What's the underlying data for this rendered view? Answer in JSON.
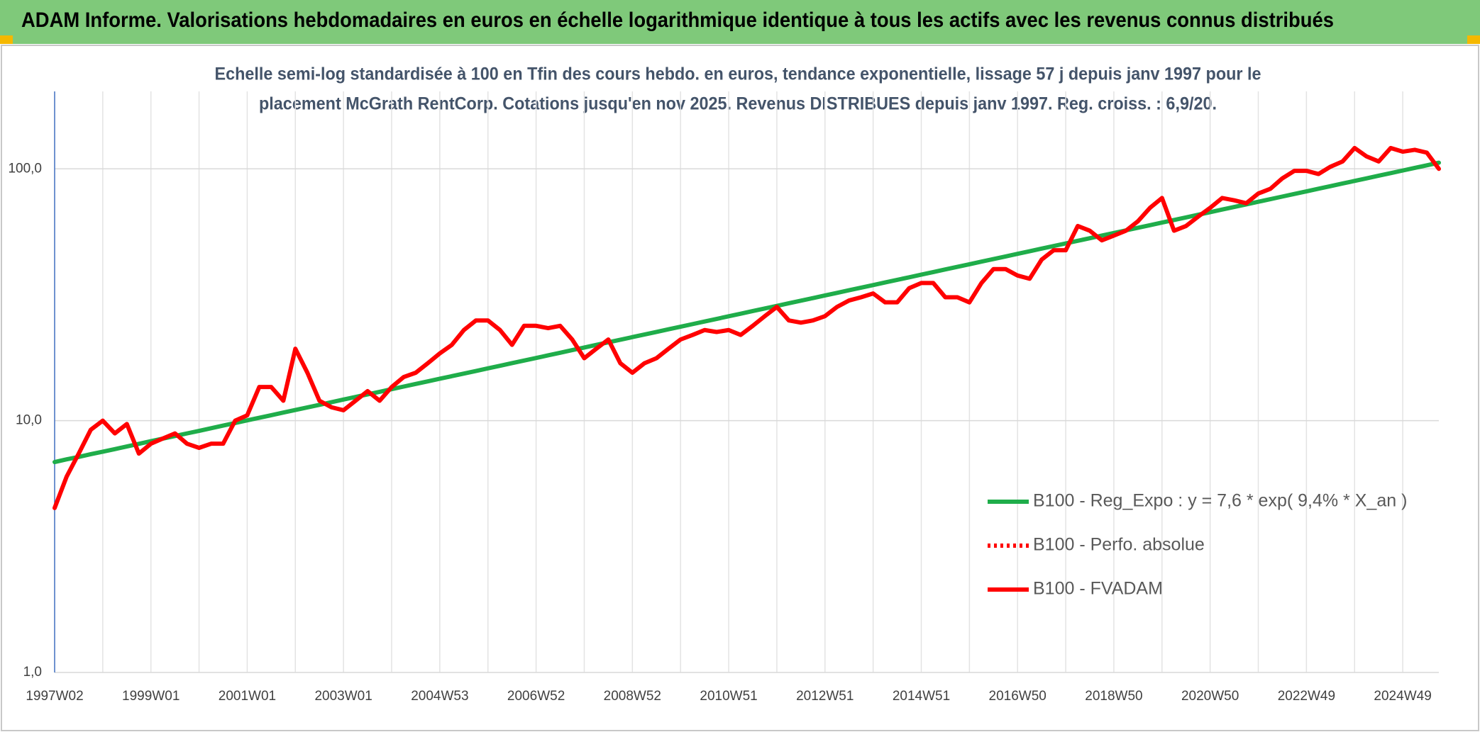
{
  "chart_data": {
    "type": "line",
    "title": "ADAM Informe. Valorisations hebdomadaires en euros en échelle logarithmique identique à tous les actifs avec les revenus connus distribués",
    "subtitle": [
      "Echelle semi-log standardisée à 100 en Tfin des cours hebdo. en euros, tendance exponentielle, lissage 57 j depuis janv 1997 pour le",
      "placement McGrath RentCorp. Cotations jusqu'en nov 2025. Revenus DISTRIBUES depuis janv 1997. Reg. croiss. : 6,9/20."
    ],
    "categories": [
      "1997W02",
      null,
      null,
      null,
      null,
      null,
      null,
      null,
      "1999W01",
      null,
      null,
      null,
      null,
      null,
      null,
      null,
      "2001W01",
      null,
      null,
      null,
      null,
      null,
      null,
      null,
      "2003W01",
      null,
      null,
      null,
      null,
      null,
      null,
      null,
      "2004W53",
      null,
      null,
      null,
      null,
      null,
      null,
      null,
      "2006W52",
      null,
      null,
      null,
      null,
      null,
      null,
      null,
      "2008W52",
      null,
      null,
      null,
      null,
      null,
      null,
      null,
      "2010W51",
      null,
      null,
      null,
      null,
      null,
      null,
      null,
      "2012W51",
      null,
      null,
      null,
      null,
      null,
      null,
      null,
      "2014W51",
      null,
      null,
      null,
      null,
      null,
      null,
      null,
      "2016W50",
      null,
      null,
      null,
      null,
      null,
      null,
      null,
      "2018W50",
      null,
      null,
      null,
      null,
      null,
      null,
      null,
      "2020W50",
      null,
      null,
      null,
      null,
      null,
      null,
      null,
      "2022W49",
      null,
      null,
      null,
      null,
      null,
      null,
      null,
      "2024W49",
      null,
      null,
      null
    ],
    "ylog": true,
    "ylim": [
      1,
      203
    ],
    "yticks": [
      {
        "value": 1,
        "label": "1,0"
      },
      {
        "value": 10,
        "label": "10,0"
      },
      {
        "value": 100,
        "label": "100,0"
      }
    ],
    "grid": true,
    "legend": "right",
    "series": [
      {
        "name": "B100 - Reg_Expo : y = 7,6 * exp( 9,4% *  X_an )",
        "color": "#1fad4a",
        "dash": "solid",
        "values": [
          6.85,
          7.02,
          7.18,
          7.36,
          7.53,
          7.71,
          7.9,
          8.09,
          8.29,
          8.49,
          8.69,
          8.9,
          9.11,
          9.33,
          9.56,
          9.79,
          10.03,
          10.27,
          10.51,
          10.77,
          11.03,
          11.29,
          11.56,
          11.84,
          12.13,
          12.42,
          12.72,
          13.02,
          13.34,
          13.66,
          13.99,
          14.32,
          14.67,
          15.02,
          15.38,
          15.75,
          16.13,
          16.52,
          16.92,
          17.33,
          17.74,
          18.17,
          18.61,
          19.06,
          19.52,
          19.99,
          20.47,
          20.96,
          21.47,
          21.98,
          22.51,
          23.06,
          23.61,
          24.18,
          24.76,
          25.36,
          25.97,
          26.6,
          27.24,
          27.89,
          28.56,
          29.25,
          29.96,
          30.68,
          31.42,
          32.17,
          32.95,
          33.74,
          34.55,
          35.39,
          36.24,
          37.11,
          38,
          38.92,
          39.86,
          40.82,
          41.8,
          42.81,
          43.84,
          44.89,
          45.98,
          47.08,
          48.22,
          49.38,
          50.57,
          51.79,
          53.03,
          54.31,
          55.62,
          56.96,
          58.33,
          59.74,
          61.18,
          62.65,
          64.16,
          65.71,
          67.29,
          68.91,
          70.57,
          72.27,
          74.01,
          75.8,
          77.62,
          79.49,
          81.41,
          83.37,
          85.38,
          87.44,
          89.54,
          91.7,
          93.91,
          96.17,
          98.49,
          100.86,
          103.29,
          105.78
        ]
      },
      {
        "name": "B100 - Perfo. absolue",
        "color": "#ff0000",
        "dash": "dotted"
      },
      {
        "name": "B100 - FVADAM",
        "color": "#ff0000",
        "dash": "solid",
        "values": [
          4.5,
          6,
          7.4,
          9.2,
          10,
          8.9,
          9.7,
          7.4,
          8.1,
          8.5,
          8.9,
          8.1,
          7.8,
          8.1,
          8.1,
          10,
          10.5,
          13.6,
          13.6,
          12,
          19.3,
          15.5,
          12,
          11.3,
          11,
          12,
          13.1,
          12,
          13.6,
          14.9,
          15.5,
          16.9,
          18.5,
          20,
          22.9,
          25,
          25,
          22.9,
          20,
          23.8,
          23.8,
          23.3,
          23.8,
          21,
          17.7,
          19.3,
          21,
          16.9,
          15.5,
          16.9,
          17.7,
          19.3,
          21,
          21.9,
          22.9,
          22.5,
          22.9,
          21.9,
          23.8,
          26,
          28.3,
          25,
          24.5,
          25,
          26,
          28.3,
          30,
          30.9,
          32,
          29.5,
          29.5,
          33.6,
          35.2,
          35.2,
          30.9,
          30.9,
          29.5,
          35.2,
          40,
          40,
          37.7,
          36.6,
          43.6,
          47.5,
          47.5,
          59.3,
          56.8,
          52,
          54.3,
          56.8,
          61.9,
          70,
          76.6,
          56.8,
          59.3,
          64.6,
          70,
          76.6,
          75,
          73,
          79.8,
          83.3,
          91.7,
          98.2,
          98.2,
          95.4,
          102,
          107,
          121,
          112,
          107,
          121,
          117,
          119,
          116,
          100
        ]
      }
    ]
  }
}
